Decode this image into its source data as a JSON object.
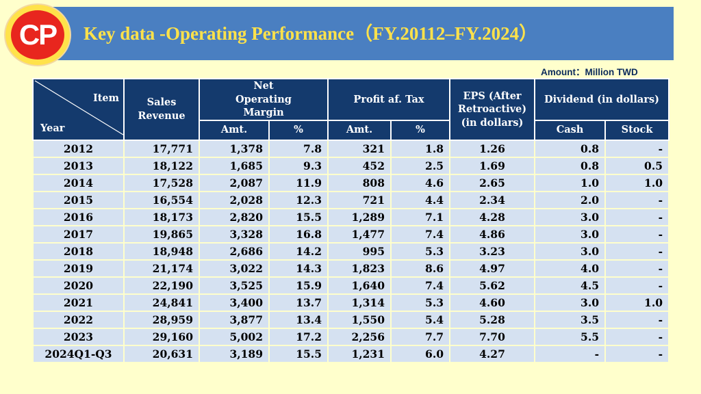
{
  "logo": {
    "text": "CP"
  },
  "title": "Key data -Operating Performance（FY.20112–FY.2024）",
  "unit_note": "Amount：Million TWD",
  "headers": {
    "item": "Item",
    "year": "Year",
    "sales": "Sales Revenue",
    "net_operating_margin": "Net Operating Margin",
    "profit_after_tax": "Profit af. Tax",
    "eps": "EPS (After Retroactive) (in dollars)",
    "dividend": "Dividend (in dollars)",
    "amt": "Amt.",
    "pct": "%",
    "cash": "Cash",
    "stock": "Stock"
  },
  "rows": [
    [
      "2012",
      "17,771",
      "1,378",
      "7.8",
      "321",
      "1.8",
      "1.26",
      "0.8",
      "-"
    ],
    [
      "2013",
      "18,122",
      "1,685",
      "9.3",
      "452",
      "2.5",
      "1.69",
      "0.8",
      "0.5"
    ],
    [
      "2014",
      "17,528",
      "2,087",
      "11.9",
      "808",
      "4.6",
      "2.65",
      "1.0",
      "1.0"
    ],
    [
      "2015",
      "16,554",
      "2,028",
      "12.3",
      "721",
      "4.4",
      "2.34",
      "2.0",
      "-"
    ],
    [
      "2016",
      "18,173",
      "2,820",
      "15.5",
      "1,289",
      "7.1",
      "4.28",
      "3.0",
      "-"
    ],
    [
      "2017",
      "19,865",
      "3,328",
      "16.8",
      "1,477",
      "7.4",
      "4.86",
      "3.0",
      "-"
    ],
    [
      "2018",
      "18,948",
      "2,686",
      "14.2",
      "995",
      "5.3",
      "3.23",
      "3.0",
      "-"
    ],
    [
      "2019",
      "21,174",
      "3,022",
      "14.3",
      "1,823",
      "8.6",
      "4.97",
      "4.0",
      "-"
    ],
    [
      "2020",
      "22,190",
      "3,525",
      "15.9",
      "1,640",
      "7.4",
      "5.62",
      "4.5",
      "-"
    ],
    [
      "2021",
      "24,841",
      "3,400",
      "13.7",
      "1,314",
      "5.3",
      "4.60",
      "3.0",
      "1.0"
    ],
    [
      "2022",
      "28,959",
      "3,877",
      "13.4",
      "1,550",
      "5.4",
      "5.28",
      "3.5",
      "-"
    ],
    [
      "2023",
      "29,160",
      "5,002",
      "17.2",
      "2,256",
      "7.7",
      "7.70",
      "5.5",
      "-"
    ],
    [
      "2024Q1-Q3",
      "20,631",
      "3,189",
      "15.5",
      "1,231",
      "6.0",
      "4.27",
      "-",
      "-"
    ]
  ]
}
